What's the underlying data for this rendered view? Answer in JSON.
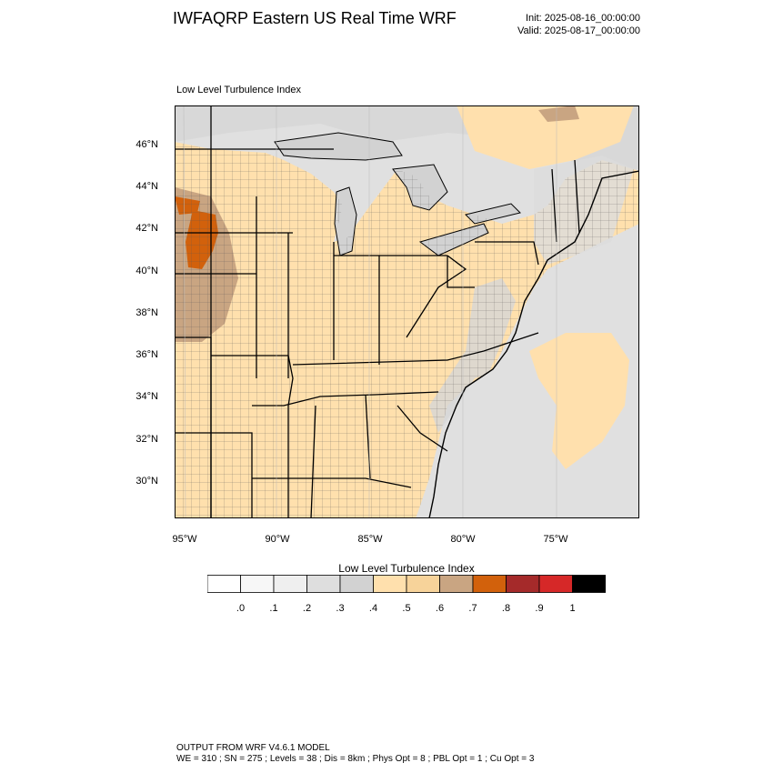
{
  "header": {
    "title": "IWFAQRP Eastern US Real Time WRF",
    "init": "Init: 2025-08-16_00:00:00",
    "valid": "Valid: 2025-08-17_00:00:00"
  },
  "panel": {
    "label": "Low Level Turbulence Index"
  },
  "axes": {
    "lat_labels": [
      "46°N",
      "44°N",
      "42°N",
      "40°N",
      "38°N",
      "36°N",
      "34°N",
      "32°N",
      "30°N"
    ],
    "lon_labels": [
      "95°W",
      "90°W",
      "85°W",
      "80°W",
      "75°W"
    ]
  },
  "colorbar": {
    "title": "Low Level Turbulence Index",
    "ticks": [
      ".0",
      ".1",
      ".2",
      ".3",
      ".4",
      ".5",
      ".6",
      ".7",
      ".8",
      ".9",
      "1"
    ],
    "colors": [
      "#ffffff",
      "#f7f7f7",
      "#efefef",
      "#dedede",
      "#d2d2d2",
      "#ffe0ad",
      "#f7d39a",
      "#c9a582",
      "#d2610c",
      "#a52a2a",
      "#d62828",
      "#000000"
    ]
  },
  "map_colors": {
    "background": "#e0e0e0",
    "land_low": "#ffe0ad",
    "land_mid": "#c9a582",
    "hot": "#d2610c",
    "red": "#a52a2a",
    "water": "#d2d2d2"
  },
  "footer": {
    "line1": "OUTPUT FROM WRF V4.6.1 MODEL",
    "line2": "WE = 310 ; SN = 275 ; Levels = 38 ; Dis = 8km ; Phys Opt = 8 ; PBL Opt = 1 ; Cu Opt = 3"
  }
}
